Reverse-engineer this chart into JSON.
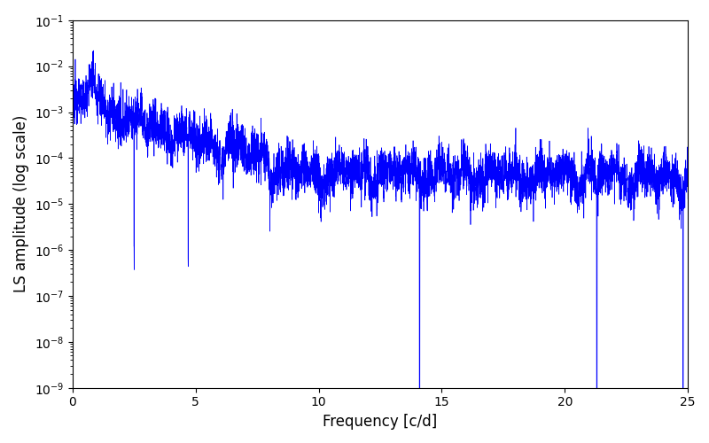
{
  "xlabel": "Frequency [c/d]",
  "ylabel": "LS amplitude (log scale)",
  "xlim": [
    0,
    25
  ],
  "ylim": [
    1e-09,
    0.1
  ],
  "line_color": "#0000ff",
  "line_width": 0.5,
  "figsize": [
    8.0,
    5.0
  ],
  "dpi": 100,
  "seed": 12345,
  "n_points": 5000,
  "freq_max": 25.0
}
